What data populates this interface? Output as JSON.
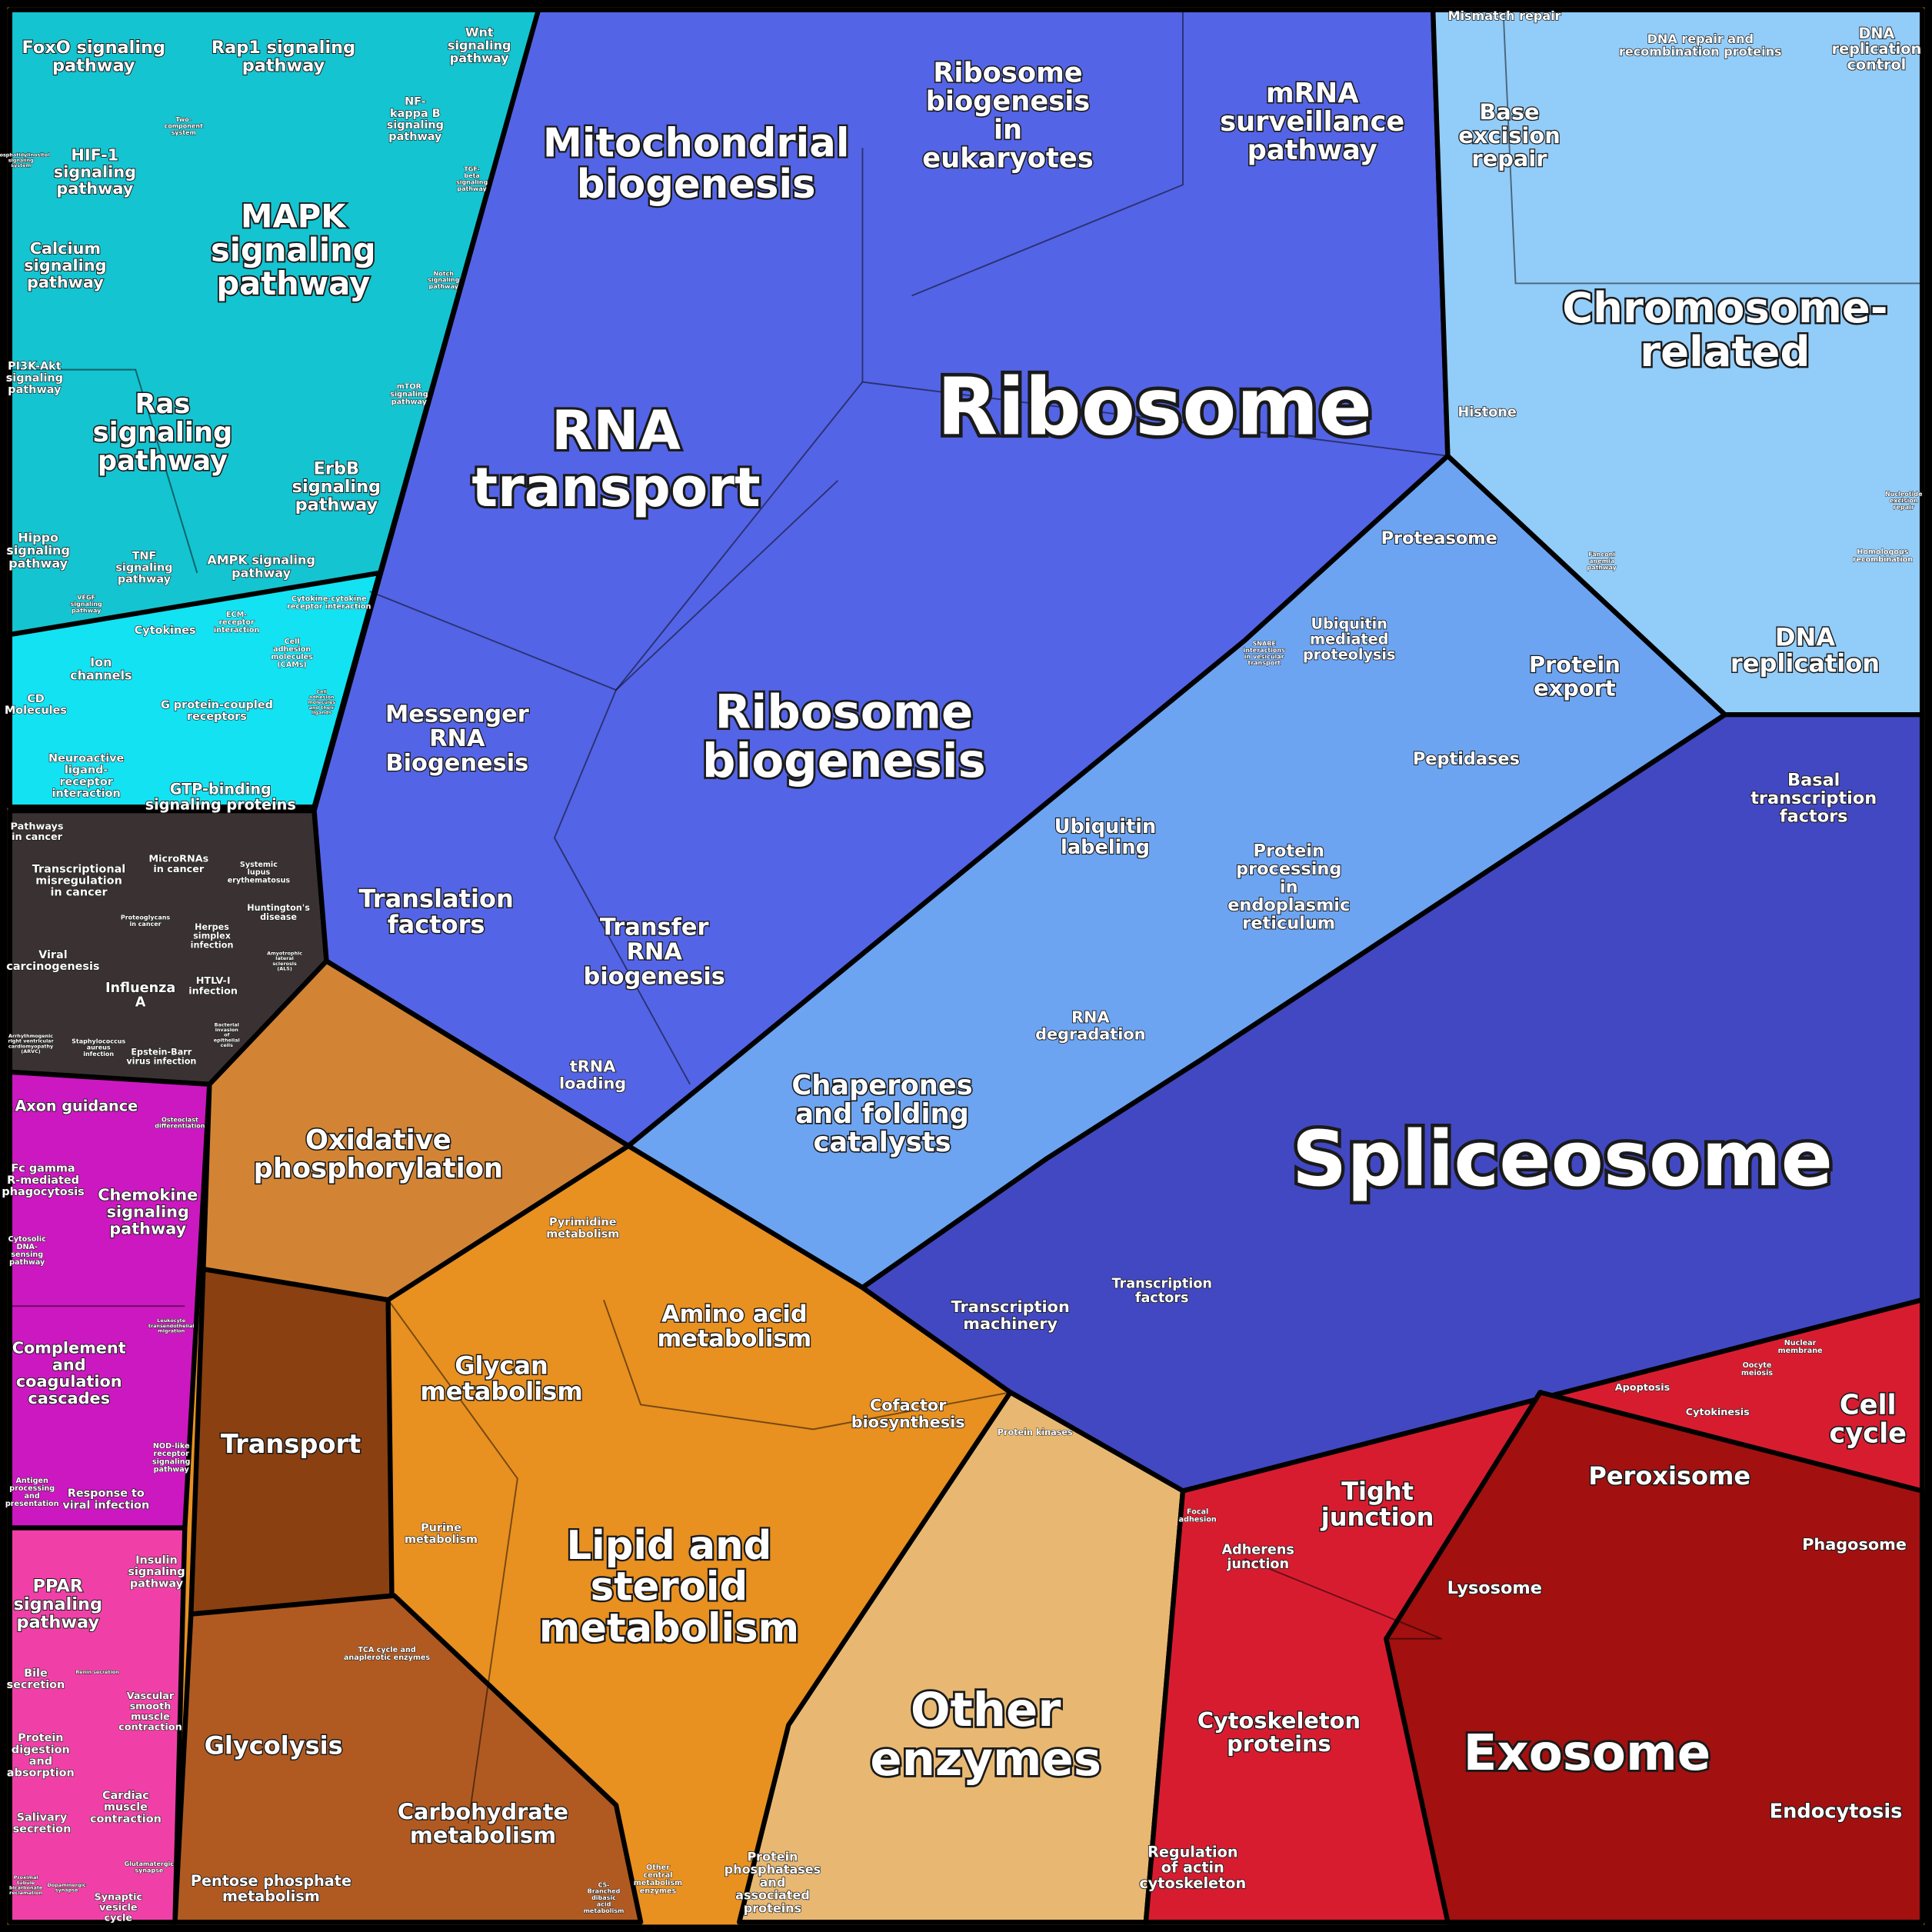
{
  "labels": [
    "Ribosome",
    "Spliceosome",
    "RNA\ntransport",
    "Ribosome\nbiogenesis",
    "Mitochondrial\nbiogenesis",
    "Chromosome-\nrelated",
    "Exosome",
    "Other\nenzymes",
    "Lipid and\nsteroid\nmetabolism",
    "MAPK\nsignaling\npathway",
    "Ribosome\nbiogenesis\nin\neukaryotes",
    "mRNA\nsurveillance\npathway",
    "Ras\nsignaling\npathway",
    "Oxidative\nphosphorylation",
    "Chaperones\nand folding\ncatalysts",
    "Messenger\nRNA\nBiogenesis",
    "Translation\nfactors",
    "Transfer\nRNA\nbiogenesis",
    "Glycan\nmetabolism",
    "Amino acid\nmetabolism",
    "Transport",
    "Glycolysis",
    "Carbohydrate\nmetabolism",
    "Tight\njunction",
    "Peroxisome",
    "Cell\ncycle",
    "Cytoskeleton\nproteins",
    "Endocytosis",
    "Phagosome",
    "Lysosome",
    "Regulation\nof actin\ncytoskeleton",
    "Adherens\njunction",
    "Focal\nadhesion",
    "Apoptosis",
    "Cytokinesis",
    "Oocyte\nmeiosis",
    "Nuclear\nmembrane",
    "DNA\nreplication",
    "Protein\nexport",
    "Proteasome",
    "Peptidases",
    "Ubiquitin\nmediated\nproteolysis",
    "SNARE\ninteractions\nin vesicular\ntransport",
    "Ubiquitin\nlabeling",
    "Protein\nprocessing\nin\nendoplasmic\nreticulum",
    "RNA\ndegradation",
    "Basal\ntranscription\nfactors",
    "Base\nexcision\nrepair",
    "Histone",
    "Mismatch repair",
    "DNA repair and\nrecombination proteins",
    "DNA\nreplication\ncontrol",
    "Fanconi\nanemia\npathway",
    "Nucleotide\nexcision\nrepair",
    "Homologous\nrecombination",
    "Transcription\nmachinery",
    "Transcription\nfactors",
    "Protein kinases",
    "Protein\nphosphatases\nand\nassociated\nproteins",
    "tRNA\nloading",
    "Pyrimidine\nmetabolism",
    "Cofactor\nbiosynthesis",
    "Purine\nmetabolism",
    "TCA cycle and\nanaplerotic enzymes",
    "Pentose phosphate\nmetabolism",
    "Other\ncentral\nmetabolism\nenzymes",
    "C5-\nBranched\ndibasic\nacid\nmetabolism",
    "FoxO signaling\npathway",
    "Rap1 signaling\npathway",
    "Wnt\nsignaling\npathway",
    "Two-\ncomponent\nsystem",
    "NF-\nkappa B\nsignaling\npathway",
    "HIF-1\nsignaling\npathway",
    "Phosphatidylinositol\nsignaling\nsystem",
    "TGF-\nbeta\nsignaling\npathway",
    "Calcium\nsignaling\npathway",
    "Notch\nsignaling\npathway",
    "mTOR\nsignaling\npathway",
    "PI3K-Akt\nsignaling\npathway",
    "ErbB\nsignaling\npathway",
    "Hippo\nsignaling\npathway",
    "TNF\nsignaling\npathway",
    "AMPK signaling\npathway",
    "VEGF\nsignaling\npathway",
    "Cytokine-cytokine\nreceptor interaction",
    "Cytokines",
    "ECM-\nreceptor\ninteraction",
    "Cell\nadhesion\nmolecules\n(CAMs)",
    "Ion\nchannels",
    "CD\nMolecules",
    "G protein-coupled\nreceptors",
    "Cell\nadhesion\nmolecules\nand their\nligands",
    "Neuroactive\nligand-\nreceptor\ninteraction",
    "GTP-binding\nsignaling proteins",
    "Pathways\nin cancer",
    "Transcriptional\nmisregulation\nin cancer",
    "MicroRNAs\nin cancer",
    "Systemic\nlupus\nerythematosus",
    "Proteoglycans\nin cancer",
    "Huntington's\ndisease",
    "Herpes\nsimplex\ninfection",
    "Viral\ncarcinogenesis",
    "Amyotrophic\nlateral\nsclerosis\n(ALS)",
    "Influenza\nA",
    "HTLV-I\ninfection",
    "Arrhythmogenic\nright ventricular\ncardiomyopathy\n(ARVC)",
    "Staphylococcus\naureus\ninfection",
    "Bacterial\ninvasion\nof\nepithelial\ncells",
    "Epstein-Barr\nvirus infection",
    "Axon guidance",
    "Osteoclast\ndifferentiation",
    "Fc gamma\nR-mediated\nphagocytosis",
    "Chemokine\nsignaling\npathway",
    "Cytosolic\nDNA-\nsensing\npathway",
    "Leukocyte\ntransendothelial\nmigration",
    "Complement\nand\ncoagulation\ncascades",
    "NOD-like\nreceptor\nsignaling\npathway",
    "Antigen\nprocessing\nand\npresentation",
    "Response to\nviral infection",
    "PPAR\nsignaling\npathway",
    "Insulin\nsignaling\npathway",
    "Bile\nsecretion",
    "Renin secretion",
    "Vascular\nsmooth\nmuscle\ncontraction",
    "Protein\ndigestion\nand\nabsorption",
    "Cardiac\nmuscle\ncontraction",
    "Salivary\nsecretion",
    "Proximal\ntubule\nbicarbonate\nreclamation",
    "Dopaminergic\nsynapse",
    "Glutamatergic\nsynapse",
    "Synaptic\nvesicle\ncycle"
  ]
}
